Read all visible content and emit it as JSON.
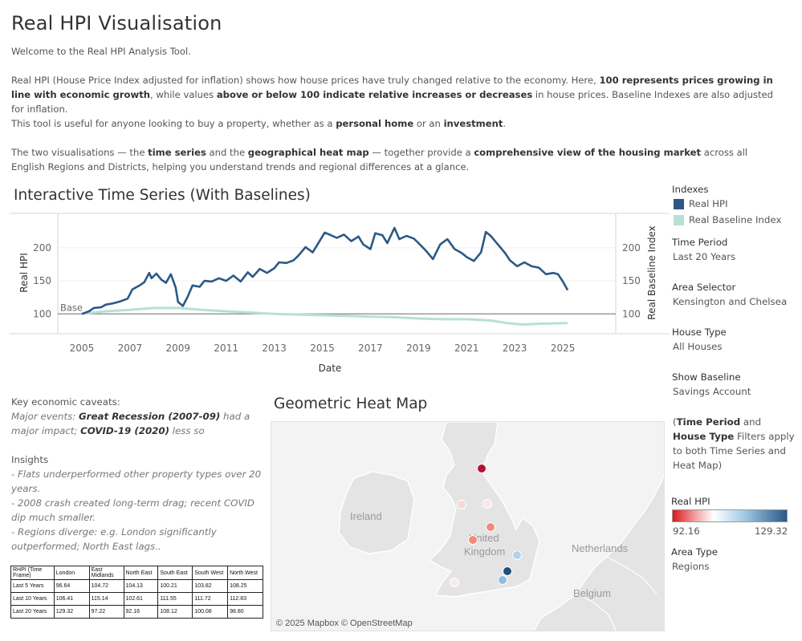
{
  "header": {
    "title": "Real HPI Visualisation",
    "welcome": "Welcome to the Real HPI Analysis Tool.",
    "p1_a": "Real HPI (House Price Index adjusted for inflation) shows how house prices have truly changed relative to the economy. Here, ",
    "p1_b": "100 represents prices growing in line with economic growth",
    "p1_c": ", while values ",
    "p1_d": "above or below 100 indicate relative increases or decreases",
    "p1_e": " in house prices. Baseline Indexes are also adjusted for inflation.",
    "p2_a": "This tool is useful for anyone looking to buy a property, whether as a ",
    "p2_b": "personal home",
    "p2_c": " or an ",
    "p2_d": "investment",
    "p2_e": ".",
    "p3_a": "The two visualisations — the ",
    "p3_b": "time series",
    "p3_c": " and the ",
    "p3_d": "geographical heat map",
    "p3_e": " — together provide a ",
    "p3_f": "comprehensive view of the housing market",
    "p3_g": " across all English Regions and Districts, helping you understand trends and regional differences at a glance."
  },
  "timeseries": {
    "title": "Interactive Time Series (With Baselines)",
    "base_label": "Base"
  },
  "chart_data": {
    "type": "line",
    "xlabel": "Date",
    "ylabel": "Real HPI",
    "y2label": "Real Baseline Index",
    "xlim": [
      2004,
      2027.2
    ],
    "ylim": [
      70,
      252
    ],
    "x_ticks": [
      "2005",
      "2007",
      "2009",
      "2011",
      "2013",
      "2015",
      "2017",
      "2019",
      "2021",
      "2023",
      "2025"
    ],
    "y_ticks": [
      "100",
      "150",
      "200"
    ],
    "y2_ticks": [
      "100",
      "150",
      "200"
    ],
    "reference_line": 100,
    "series": [
      {
        "name": "Real HPI",
        "color": "#2b5987",
        "points": [
          [
            2005.0,
            100
          ],
          [
            2005.3,
            104
          ],
          [
            2005.5,
            109
          ],
          [
            2005.8,
            110
          ],
          [
            2006.0,
            114
          ],
          [
            2006.3,
            116
          ],
          [
            2006.6,
            119
          ],
          [
            2006.9,
            123
          ],
          [
            2007.1,
            137
          ],
          [
            2007.4,
            143
          ],
          [
            2007.6,
            148
          ],
          [
            2007.8,
            162
          ],
          [
            2007.9,
            154
          ],
          [
            2008.1,
            161
          ],
          [
            2008.3,
            152
          ],
          [
            2008.5,
            147
          ],
          [
            2008.7,
            160
          ],
          [
            2008.9,
            140
          ],
          [
            2009.0,
            118
          ],
          [
            2009.2,
            112
          ],
          [
            2009.4,
            126
          ],
          [
            2009.6,
            143
          ],
          [
            2009.9,
            141
          ],
          [
            2010.1,
            150
          ],
          [
            2010.4,
            149
          ],
          [
            2010.7,
            154
          ],
          [
            2011.0,
            150
          ],
          [
            2011.3,
            158
          ],
          [
            2011.6,
            149
          ],
          [
            2011.9,
            163
          ],
          [
            2012.1,
            156
          ],
          [
            2012.4,
            168
          ],
          [
            2012.7,
            162
          ],
          [
            2013.0,
            169
          ],
          [
            2013.2,
            178
          ],
          [
            2013.5,
            177
          ],
          [
            2013.8,
            181
          ],
          [
            2014.0,
            188
          ],
          [
            2014.3,
            201
          ],
          [
            2014.6,
            193
          ],
          [
            2014.9,
            211
          ],
          [
            2015.1,
            223
          ],
          [
            2015.3,
            220
          ],
          [
            2015.6,
            215
          ],
          [
            2015.9,
            220
          ],
          [
            2016.2,
            210
          ],
          [
            2016.5,
            217
          ],
          [
            2016.7,
            205
          ],
          [
            2017.0,
            198
          ],
          [
            2017.2,
            222
          ],
          [
            2017.5,
            219
          ],
          [
            2017.7,
            207
          ],
          [
            2018.0,
            230
          ],
          [
            2018.2,
            213
          ],
          [
            2018.5,
            218
          ],
          [
            2018.8,
            214
          ],
          [
            2019.0,
            207
          ],
          [
            2019.3,
            196
          ],
          [
            2019.6,
            183
          ],
          [
            2019.9,
            205
          ],
          [
            2020.2,
            213
          ],
          [
            2020.5,
            198
          ],
          [
            2020.8,
            192
          ],
          [
            2021.0,
            186
          ],
          [
            2021.3,
            180
          ],
          [
            2021.6,
            193
          ],
          [
            2021.8,
            224
          ],
          [
            2022.0,
            218
          ],
          [
            2022.3,
            205
          ],
          [
            2022.6,
            192
          ],
          [
            2022.8,
            181
          ],
          [
            2023.1,
            172
          ],
          [
            2023.4,
            178
          ],
          [
            2023.7,
            172
          ],
          [
            2024.0,
            170
          ],
          [
            2024.3,
            160
          ],
          [
            2024.6,
            162
          ],
          [
            2024.8,
            160
          ],
          [
            2025.0,
            149
          ],
          [
            2025.2,
            136
          ]
        ]
      },
      {
        "name": "Real Baseline Index",
        "color": "#b7e0d6",
        "points": [
          [
            2005.0,
            100
          ],
          [
            2006.0,
            104
          ],
          [
            2007.0,
            106
          ],
          [
            2008.0,
            109
          ],
          [
            2009.0,
            109
          ],
          [
            2010.0,
            106
          ],
          [
            2011.0,
            104
          ],
          [
            2012.0,
            102
          ],
          [
            2013.0,
            100
          ],
          [
            2014.0,
            99
          ],
          [
            2015.0,
            98
          ],
          [
            2016.0,
            97
          ],
          [
            2017.0,
            96
          ],
          [
            2018.0,
            95
          ],
          [
            2019.0,
            93
          ],
          [
            2020.0,
            92
          ],
          [
            2021.0,
            92
          ],
          [
            2022.0,
            90
          ],
          [
            2022.7,
            86
          ],
          [
            2023.3,
            84
          ],
          [
            2024.0,
            85
          ],
          [
            2025.0,
            86
          ],
          [
            2025.2,
            86
          ]
        ]
      }
    ]
  },
  "sidebar": {
    "indexes_label": "Indexes",
    "legend": [
      {
        "label": "Real HPI",
        "color": "#2b5987"
      },
      {
        "label": "Real Baseline Index",
        "color": "#b7e0d6"
      }
    ],
    "time_period_label": "Time Period",
    "time_period_value": "Last 20 Years",
    "area_selector_label": "Area Selector",
    "area_selector_value": "Kensington and Chelsea",
    "house_type_label": "House Type",
    "house_type_value": "All Houses",
    "show_baseline_label": "Show Baseline",
    "show_baseline_value": "Savings Account",
    "note_a": "(",
    "note_b": "Time Period",
    "note_c": " and ",
    "note_d": "House Type",
    "note_e": " Filters apply to both Time Series and Heat Map)",
    "real_hpi_label": "Real HPI",
    "real_hpi_min": "92.16",
    "real_hpi_max": "129.32",
    "area_type_label": "Area Type",
    "area_type_value": "Regions"
  },
  "caveats": {
    "title": "Key economic caveats:",
    "line_a": "Major events: ",
    "line_b": "Great Recession (2007-09)",
    "line_c": "  had a major impact; ",
    "line_d": "COVID-19 (2020)",
    "line_e": "  less so",
    "insights_title": "Insights",
    "insight_1": "- Flats underperformed other property types over 20 years.",
    "insight_2": "- 2008 crash created long-term drag; recent COVID dip much smaller.",
    "insight_3": "- Regions diverge: e.g. London significantly outperformed; North East lags.."
  },
  "table": {
    "headers": [
      "RHPI (Time Frame)",
      "London",
      "East Midlands",
      "North East",
      "South East",
      "South West",
      "North West"
    ],
    "rows": [
      [
        "Last 5 Years",
        "96.64",
        "104.72",
        "104.13",
        "100.21",
        "103.82",
        "108.25"
      ],
      [
        "Last 10 Years",
        "106.41",
        "115.14",
        "102.61",
        "111.55",
        "111.72",
        "112.83"
      ],
      [
        "Last 20 Years",
        "129.32",
        "97.22",
        "92.16",
        "108.12",
        "100.08",
        "98.80"
      ]
    ]
  },
  "map": {
    "title": "Geometric Heat Map",
    "labels": {
      "ireland": "Ireland",
      "united": "United",
      "kingdom": "Kingdom",
      "netherlands": "Netherlands",
      "belgium": "Belgium"
    },
    "attribution": "© 2025 Mapbox © OpenStreetMap",
    "colors": {
      "land": "#e4e4e4",
      "sea": "#f3f3f3",
      "border": "#ffffff"
    }
  }
}
